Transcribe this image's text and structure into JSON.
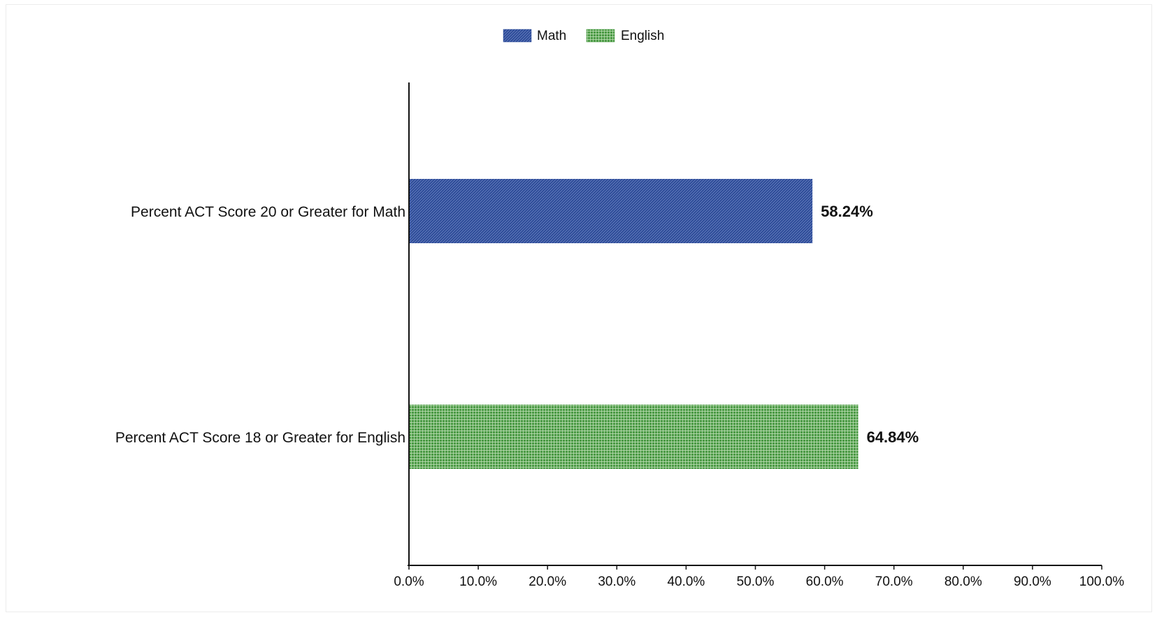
{
  "colors": {
    "math": "#2b4a97",
    "english": "#4b9a45",
    "axis": "#111111",
    "background": "#ffffff"
  },
  "chart_data": {
    "type": "bar",
    "orientation": "horizontal",
    "title": "",
    "xlabel": "",
    "ylabel": "",
    "categories": [
      "Percent ACT Score 20 or Greater for Math",
      "Percent ACT Score 18 or Greater for English"
    ],
    "series": [
      {
        "name": "Math",
        "pattern": "diagonal-hatch",
        "values": [
          58.24,
          null
        ]
      },
      {
        "name": "English",
        "pattern": "grid",
        "values": [
          null,
          64.84
        ]
      }
    ],
    "data_labels": [
      "58.24%",
      "64.84%"
    ],
    "xlim": [
      0,
      100
    ],
    "xticks": [
      0,
      10,
      20,
      30,
      40,
      50,
      60,
      70,
      80,
      90,
      100
    ],
    "xtick_labels": [
      "0.0%",
      "10.0%",
      "20.0%",
      "30.0%",
      "40.0%",
      "50.0%",
      "60.0%",
      "70.0%",
      "80.0%",
      "90.0%",
      "100.0%"
    ],
    "grid": false,
    "legend": {
      "placement": "top-center",
      "entries": [
        "Math",
        "English"
      ]
    }
  }
}
